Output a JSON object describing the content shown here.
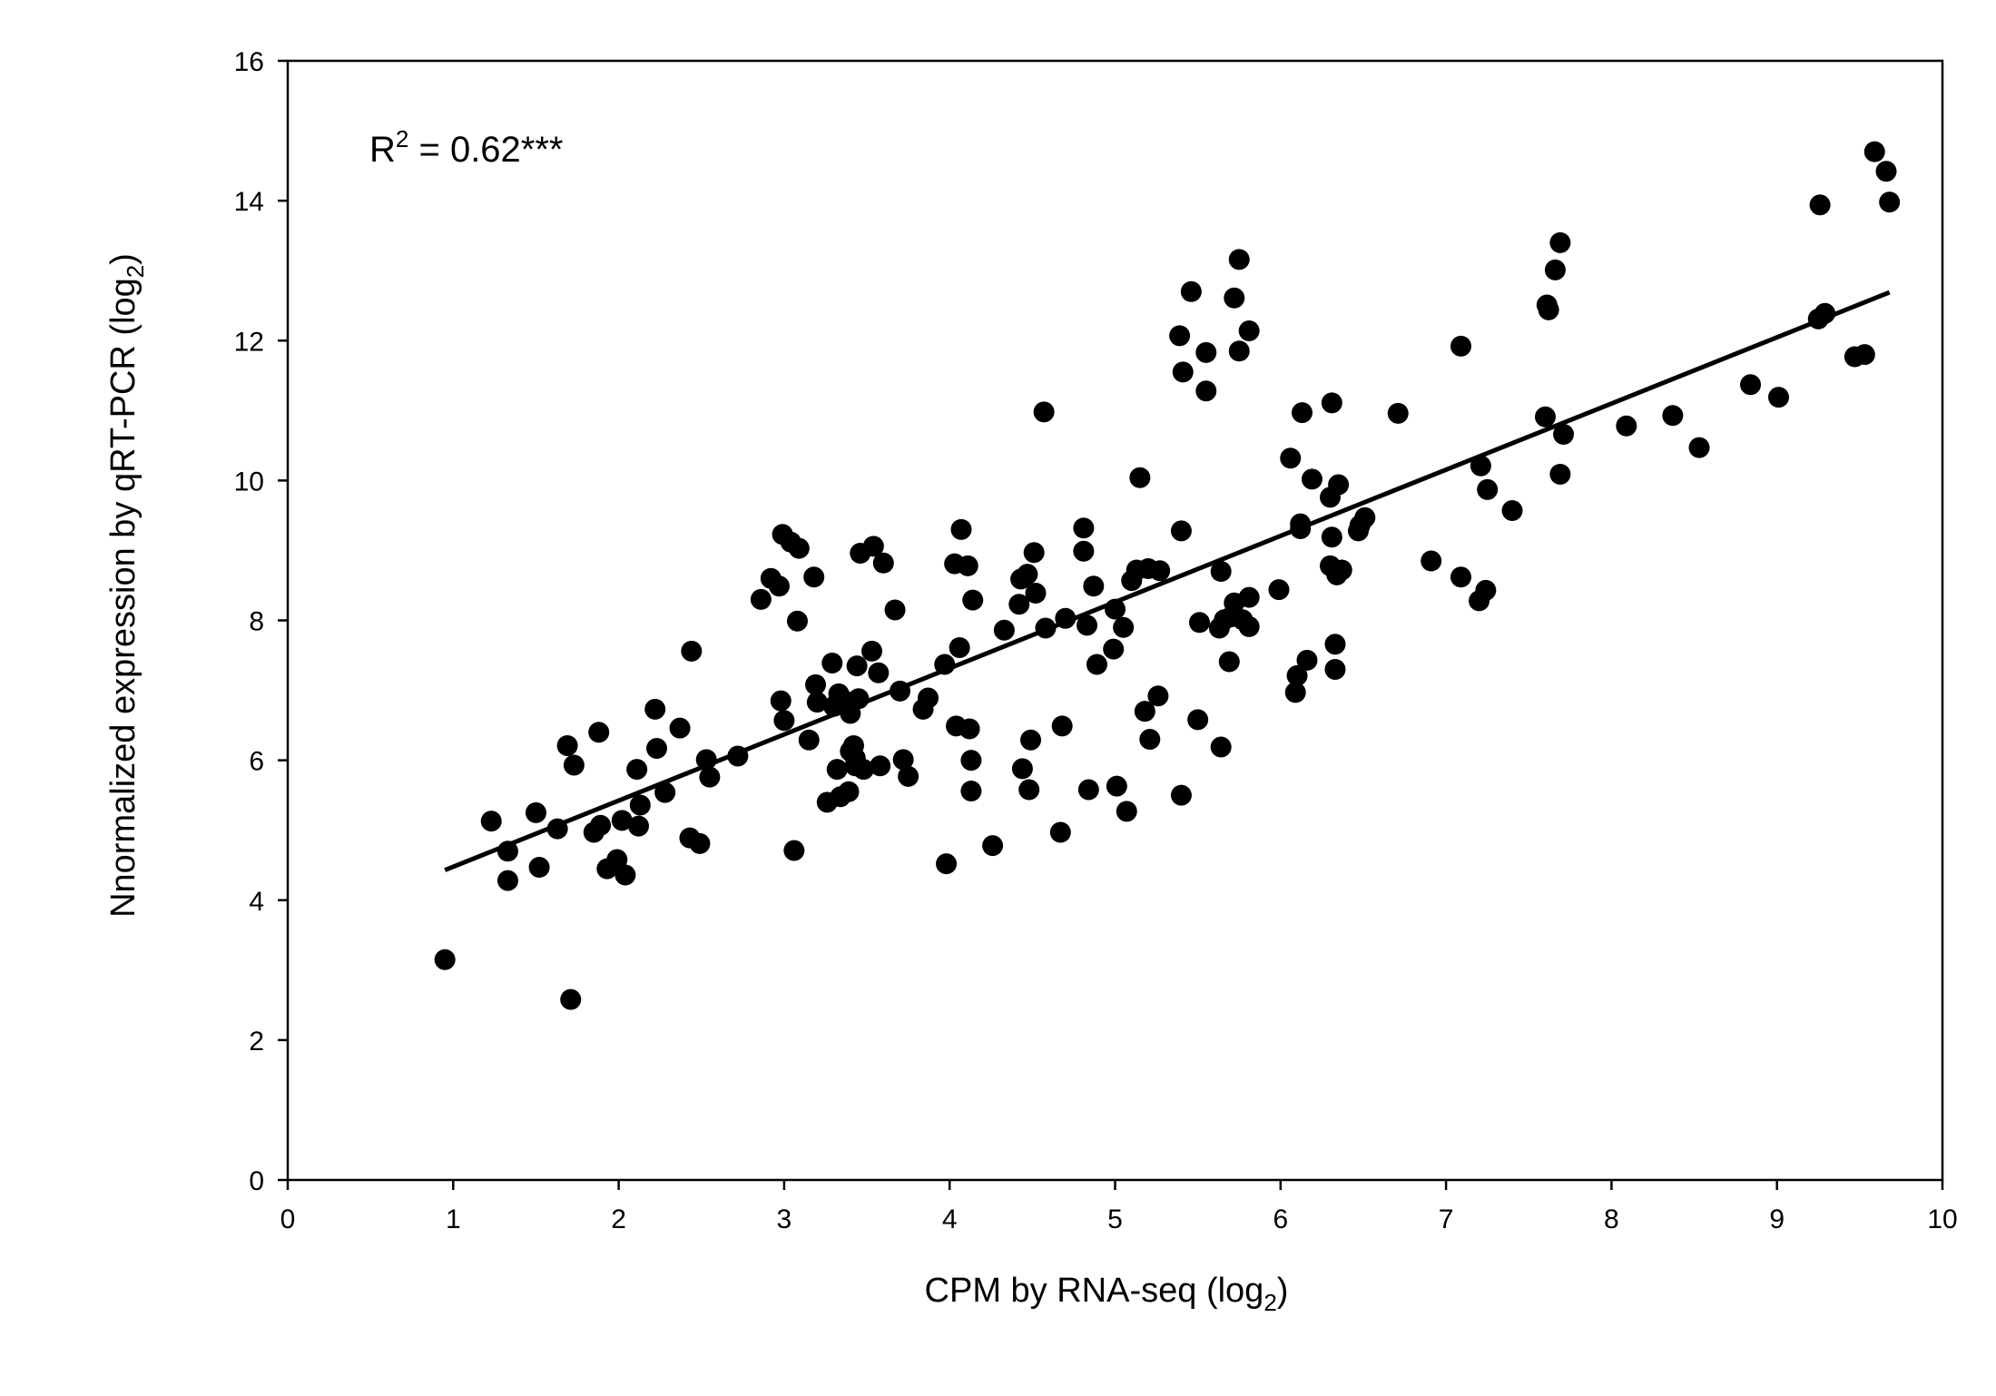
{
  "chart_data": {
    "type": "scatter",
    "title": "",
    "xlabel": {
      "main": "CPM by RNA-seq (log",
      "sub": "2",
      "end": ")"
    },
    "ylabel": {
      "main": "Nnormalized expression by qRT-PCR (log",
      "sub": "2",
      "end": ")"
    },
    "xlim": [
      0,
      10
    ],
    "ylim": [
      0,
      16
    ],
    "x_ticks": [
      "0",
      "1",
      "2",
      "3",
      "4",
      "5",
      "6",
      "7",
      "8",
      "9",
      "10"
    ],
    "y_ticks": [
      "0",
      "2",
      "4",
      "6",
      "8",
      "10",
      "12",
      "14",
      "16"
    ],
    "annotation": {
      "base": "R",
      "sup": "2",
      "rest": " = 0.62***"
    },
    "grid": false,
    "marker_color": "#000000",
    "regression_line": {
      "x": [
        0.95,
        9.68
      ],
      "y": [
        4.43,
        12.69
      ]
    },
    "points": [
      [
        0.95,
        3.15
      ],
      [
        1.23,
        5.13
      ],
      [
        1.33,
        4.7
      ],
      [
        1.33,
        4.28
      ],
      [
        1.5,
        5.25
      ],
      [
        1.52,
        4.47
      ],
      [
        1.63,
        5.02
      ],
      [
        1.69,
        6.21
      ],
      [
        1.71,
        2.58
      ],
      [
        1.73,
        5.93
      ],
      [
        1.85,
        4.97
      ],
      [
        1.88,
        6.4
      ],
      [
        1.89,
        5.07
      ],
      [
        1.93,
        4.45
      ],
      [
        1.99,
        4.58
      ],
      [
        2.02,
        5.14
      ],
      [
        2.04,
        4.36
      ],
      [
        2.11,
        5.87
      ],
      [
        2.12,
        5.06
      ],
      [
        2.13,
        5.36
      ],
      [
        2.22,
        6.73
      ],
      [
        2.23,
        6.17
      ],
      [
        2.28,
        5.54
      ],
      [
        2.37,
        6.46
      ],
      [
        2.43,
        4.89
      ],
      [
        2.44,
        7.56
      ],
      [
        2.49,
        4.81
      ],
      [
        2.53,
        6.01
      ],
      [
        2.55,
        5.76
      ],
      [
        2.72,
        6.06
      ],
      [
        2.86,
        8.3
      ],
      [
        2.92,
        8.6
      ],
      [
        2.97,
        8.49
      ],
      [
        2.98,
        6.85
      ],
      [
        2.99,
        9.23
      ],
      [
        3.0,
        6.57
      ],
      [
        3.04,
        9.12
      ],
      [
        3.06,
        4.71
      ],
      [
        3.08,
        7.99
      ],
      [
        3.09,
        9.03
      ],
      [
        3.15,
        6.29
      ],
      [
        3.18,
        8.62
      ],
      [
        3.19,
        7.08
      ],
      [
        3.2,
        6.83
      ],
      [
        3.26,
        5.4
      ],
      [
        3.29,
        7.39
      ],
      [
        3.3,
        6.77
      ],
      [
        3.32,
        5.87
      ],
      [
        3.33,
        6.95
      ],
      [
        3.34,
        5.48
      ],
      [
        3.36,
        6.86
      ],
      [
        3.39,
        5.55
      ],
      [
        3.4,
        6.13
      ],
      [
        3.4,
        6.67
      ],
      [
        3.42,
        6.21
      ],
      [
        3.43,
        6.03
      ],
      [
        3.43,
        5.92
      ],
      [
        3.44,
        7.35
      ],
      [
        3.45,
        6.88
      ],
      [
        3.46,
        8.96
      ],
      [
        3.48,
        5.87
      ],
      [
        3.53,
        7.56
      ],
      [
        3.54,
        9.06
      ],
      [
        3.57,
        7.25
      ],
      [
        3.58,
        5.92
      ],
      [
        3.6,
        8.82
      ],
      [
        3.67,
        8.15
      ],
      [
        3.7,
        6.99
      ],
      [
        3.72,
        6.01
      ],
      [
        3.75,
        5.77
      ],
      [
        3.84,
        6.73
      ],
      [
        3.87,
        6.89
      ],
      [
        3.97,
        7.37
      ],
      [
        3.98,
        4.52
      ],
      [
        4.03,
        8.81
      ],
      [
        4.04,
        6.49
      ],
      [
        4.06,
        7.61
      ],
      [
        4.07,
        9.3
      ],
      [
        4.11,
        8.78
      ],
      [
        4.12,
        6.45
      ],
      [
        4.13,
        6.0
      ],
      [
        4.13,
        5.56
      ],
      [
        4.14,
        8.29
      ],
      [
        4.26,
        4.78
      ],
      [
        4.33,
        7.86
      ],
      [
        4.42,
        8.23
      ],
      [
        4.43,
        8.59
      ],
      [
        4.44,
        5.88
      ],
      [
        4.47,
        8.66
      ],
      [
        4.48,
        5.58
      ],
      [
        4.49,
        6.29
      ],
      [
        4.51,
        8.97
      ],
      [
        4.52,
        8.39
      ],
      [
        4.57,
        10.98
      ],
      [
        4.58,
        7.89
      ],
      [
        4.67,
        4.97
      ],
      [
        4.68,
        6.49
      ],
      [
        4.7,
        8.03
      ],
      [
        4.81,
        9.32
      ],
      [
        4.81,
        8.99
      ],
      [
        4.83,
        7.93
      ],
      [
        4.84,
        5.58
      ],
      [
        4.87,
        8.49
      ],
      [
        4.89,
        7.37
      ],
      [
        4.99,
        7.59
      ],
      [
        5.0,
        8.16
      ],
      [
        5.01,
        5.63
      ],
      [
        5.05,
        7.9
      ],
      [
        5.07,
        5.27
      ],
      [
        5.1,
        8.57
      ],
      [
        5.13,
        8.72
      ],
      [
        5.15,
        10.04
      ],
      [
        5.18,
        6.7
      ],
      [
        5.2,
        8.74
      ],
      [
        5.21,
        6.3
      ],
      [
        5.26,
        6.92
      ],
      [
        5.27,
        8.71
      ],
      [
        5.39,
        12.07
      ],
      [
        5.4,
        9.28
      ],
      [
        5.4,
        5.5
      ],
      [
        5.41,
        11.55
      ],
      [
        5.46,
        12.7
      ],
      [
        5.5,
        6.58
      ],
      [
        5.51,
        7.97
      ],
      [
        5.55,
        11.28
      ],
      [
        5.55,
        11.83
      ],
      [
        5.63,
        7.89
      ],
      [
        5.64,
        8.7
      ],
      [
        5.64,
        6.19
      ],
      [
        5.66,
        8.01
      ],
      [
        5.69,
        7.41
      ],
      [
        5.7,
        8.05
      ],
      [
        5.72,
        12.61
      ],
      [
        5.72,
        8.25
      ],
      [
        5.75,
        13.16
      ],
      [
        5.75,
        11.85
      ],
      [
        5.77,
        8.01
      ],
      [
        5.81,
        12.14
      ],
      [
        5.81,
        7.91
      ],
      [
        5.81,
        8.33
      ],
      [
        5.99,
        8.44
      ],
      [
        6.06,
        10.32
      ],
      [
        6.09,
        6.97
      ],
      [
        6.1,
        7.21
      ],
      [
        6.12,
        9.31
      ],
      [
        6.12,
        9.38
      ],
      [
        6.13,
        10.97
      ],
      [
        6.16,
        7.43
      ],
      [
        6.19,
        10.02
      ],
      [
        6.3,
        9.76
      ],
      [
        6.3,
        8.78
      ],
      [
        6.31,
        9.19
      ],
      [
        6.31,
        11.11
      ],
      [
        6.33,
        7.3
      ],
      [
        6.33,
        7.66
      ],
      [
        6.34,
        8.65
      ],
      [
        6.35,
        9.94
      ],
      [
        6.37,
        8.72
      ],
      [
        6.47,
        9.28
      ],
      [
        6.48,
        9.36
      ],
      [
        6.51,
        9.47
      ],
      [
        6.71,
        10.96
      ],
      [
        6.91,
        8.85
      ],
      [
        7.09,
        11.92
      ],
      [
        7.09,
        8.62
      ],
      [
        7.2,
        8.28
      ],
      [
        7.21,
        10.21
      ],
      [
        7.24,
        8.43
      ],
      [
        7.25,
        9.87
      ],
      [
        7.4,
        9.57
      ],
      [
        7.6,
        10.91
      ],
      [
        7.61,
        12.51
      ],
      [
        7.62,
        12.44
      ],
      [
        7.66,
        13.01
      ],
      [
        7.69,
        13.4
      ],
      [
        7.69,
        10.09
      ],
      [
        7.71,
        10.66
      ],
      [
        8.09,
        10.78
      ],
      [
        8.37,
        10.93
      ],
      [
        8.53,
        10.47
      ],
      [
        8.84,
        11.37
      ],
      [
        9.01,
        11.19
      ],
      [
        9.25,
        12.31
      ],
      [
        9.26,
        13.94
      ],
      [
        9.29,
        12.39
      ],
      [
        9.47,
        11.77
      ],
      [
        9.53,
        11.8
      ],
      [
        9.59,
        14.7
      ],
      [
        9.66,
        14.42
      ],
      [
        9.68,
        13.98
      ]
    ]
  }
}
